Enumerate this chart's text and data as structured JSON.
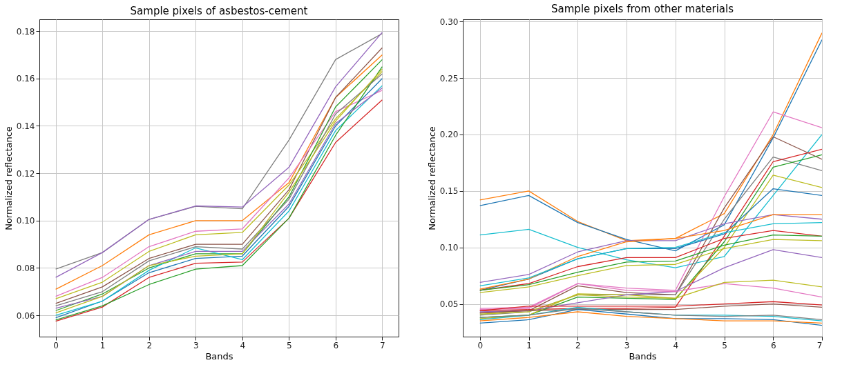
{
  "chart_data": [
    {
      "type": "line",
      "title": "Sample pixels of asbestos-cement",
      "xlabel": "Bands",
      "ylabel": "Normalized reflectance",
      "x": [
        0,
        1,
        2,
        3,
        4,
        5,
        6,
        7
      ],
      "xlim": [
        -0.35,
        7.35
      ],
      "xticks": [
        0,
        1,
        2,
        3,
        4,
        5,
        6,
        7
      ],
      "ylim": [
        0.051,
        0.185
      ],
      "yticks": [
        0.06,
        0.08,
        {
          "value": 0.1,
          "label": "0.10"
        },
        0.12,
        0.14,
        0.16,
        0.18
      ],
      "grid": true,
      "legend": false,
      "series": [
        {
          "color": "#7f7f7f",
          "values": [
            0.0795,
            0.0865,
            0.1005,
            0.106,
            0.105,
            0.134,
            0.168,
            0.179
          ]
        },
        {
          "color": "#9467bd",
          "values": [
            0.076,
            0.0865,
            0.1005,
            0.1062,
            0.1057,
            0.1225,
            0.1565,
            0.1795
          ]
        },
        {
          "color": "#ff7f0e",
          "values": [
            0.071,
            0.081,
            0.094,
            0.1,
            0.1,
            0.116,
            0.152,
            0.17
          ]
        },
        {
          "color": "#8c564b",
          "values": [
            0.065,
            0.072,
            0.084,
            0.09,
            0.09,
            0.113,
            0.152,
            0.173
          ]
        },
        {
          "color": "#e377c2",
          "values": [
            0.068,
            0.076,
            0.089,
            0.0955,
            0.0965,
            0.118,
            0.146,
            0.155
          ]
        },
        {
          "color": "#bcbd22",
          "values": [
            0.067,
            0.074,
            0.087,
            0.094,
            0.095,
            0.115,
            0.143,
            0.163
          ]
        },
        {
          "color": "#2ca02c",
          "values": [
            0.062,
            0.069,
            0.08,
            0.086,
            0.086,
            0.11,
            0.148,
            0.168
          ]
        },
        {
          "color": "#d62728",
          "values": [
            0.0575,
            0.0635,
            0.076,
            0.082,
            0.0825,
            0.101,
            0.133,
            0.151
          ]
        },
        {
          "color": "#1f77b4",
          "values": [
            0.059,
            0.066,
            0.078,
            0.084,
            0.085,
            0.106,
            0.14,
            0.16
          ]
        },
        {
          "color": "#17becf",
          "values": [
            0.06,
            0.066,
            0.079,
            0.0885,
            0.0835,
            0.104,
            0.138,
            0.157
          ]
        },
        {
          "color": "#2ca02c",
          "values": [
            0.058,
            0.064,
            0.073,
            0.0795,
            0.081,
            0.101,
            0.136,
            0.165
          ]
        },
        {
          "color": "#7f7f7f",
          "values": [
            0.064,
            0.07,
            0.083,
            0.089,
            0.088,
            0.109,
            0.145,
            0.162
          ]
        },
        {
          "color": "#9467bd",
          "values": [
            0.063,
            0.068,
            0.081,
            0.087,
            0.087,
            0.107,
            0.141,
            0.156
          ]
        },
        {
          "color": "#bcbd22",
          "values": [
            0.061,
            0.068,
            0.081,
            0.085,
            0.086,
            0.112,
            0.142,
            0.164
          ]
        }
      ]
    },
    {
      "type": "line",
      "title": "Sample pixels from other materials",
      "xlabel": "Bands",
      "ylabel": "Normalized reflectance",
      "x": [
        0,
        1,
        2,
        3,
        4,
        5,
        6,
        7
      ],
      "xlim": [
        -0.35,
        7.0
      ],
      "xticks": [
        0,
        1,
        2,
        3,
        4,
        5,
        6,
        7
      ],
      "ylim": [
        0.021,
        0.302
      ],
      "yticks": [
        0.05,
        {
          "value": 0.1,
          "label": "0.10"
        },
        0.15,
        {
          "value": 0.2,
          "label": "0.20"
        },
        0.25,
        {
          "value": 0.3,
          "label": "0.30"
        }
      ],
      "grid": true,
      "legend": false,
      "series": [
        {
          "color": "#ff7f0e",
          "values": [
            0.142,
            0.15,
            0.123,
            0.106,
            0.108,
            0.13,
            0.2,
            0.29
          ]
        },
        {
          "color": "#1f77b4",
          "values": [
            0.137,
            0.146,
            0.122,
            0.107,
            0.097,
            0.12,
            0.197,
            0.284
          ]
        },
        {
          "color": "#17becf",
          "values": [
            0.111,
            0.116,
            0.1,
            0.089,
            0.082,
            0.092,
            0.146,
            0.2
          ]
        },
        {
          "color": "#e377c2",
          "values": [
            0.046,
            0.047,
            0.068,
            0.064,
            0.062,
            0.145,
            0.22,
            0.206
          ]
        },
        {
          "color": "#8c564b",
          "values": [
            0.042,
            0.044,
            0.066,
            0.06,
            0.058,
            0.135,
            0.198,
            0.178
          ]
        },
        {
          "color": "#7f7f7f",
          "values": [
            0.04,
            0.043,
            0.058,
            0.058,
            0.058,
            0.125,
            0.18,
            0.168
          ]
        },
        {
          "color": "#d62728",
          "values": [
            0.044,
            0.045,
            0.046,
            0.046,
            0.047,
            0.11,
            0.176,
            0.187
          ]
        },
        {
          "color": "#2ca02c",
          "values": [
            0.038,
            0.04,
            0.056,
            0.055,
            0.054,
            0.105,
            0.171,
            0.182
          ]
        },
        {
          "color": "#bcbd22",
          "values": [
            0.037,
            0.04,
            0.059,
            0.058,
            0.055,
            0.1,
            0.164,
            0.153
          ]
        },
        {
          "color": "#1f77b4",
          "values": [
            0.062,
            0.072,
            0.09,
            0.099,
            0.099,
            0.112,
            0.152,
            0.146
          ]
        },
        {
          "color": "#9467bd",
          "values": [
            0.069,
            0.076,
            0.096,
            0.106,
            0.106,
            0.121,
            0.129,
            0.125
          ]
        },
        {
          "color": "#ff7f0e",
          "values": [
            0.063,
            0.072,
            0.092,
            0.105,
            0.108,
            0.115,
            0.129,
            0.129
          ]
        },
        {
          "color": "#17becf",
          "values": [
            0.066,
            0.073,
            0.09,
            0.099,
            0.1,
            0.113,
            0.121,
            0.122
          ]
        },
        {
          "color": "#d62728",
          "values": [
            0.062,
            0.068,
            0.083,
            0.091,
            0.091,
            0.108,
            0.115,
            0.11
          ]
        },
        {
          "color": "#2ca02c",
          "values": [
            0.062,
            0.067,
            0.078,
            0.087,
            0.088,
            0.102,
            0.111,
            0.11
          ]
        },
        {
          "color": "#bcbd22",
          "values": [
            0.06,
            0.065,
            0.075,
            0.084,
            0.085,
            0.099,
            0.107,
            0.106
          ]
        },
        {
          "color": "#9467bd",
          "values": [
            0.043,
            0.044,
            0.051,
            0.058,
            0.061,
            0.082,
            0.098,
            0.091
          ]
        },
        {
          "color": "#e377c2",
          "values": [
            0.045,
            0.046,
            0.068,
            0.062,
            0.061,
            0.068,
            0.064,
            0.056
          ]
        },
        {
          "color": "#bcbd22",
          "values": [
            0.041,
            0.043,
            0.058,
            0.056,
            0.055,
            0.069,
            0.071,
            0.065
          ]
        },
        {
          "color": "#d62728",
          "values": [
            0.044,
            0.048,
            0.048,
            0.048,
            0.048,
            0.05,
            0.052,
            0.049
          ]
        },
        {
          "color": "#8c564b",
          "values": [
            0.042,
            0.044,
            0.045,
            0.045,
            0.045,
            0.048,
            0.05,
            0.047
          ]
        },
        {
          "color": "#17becf",
          "values": [
            0.036,
            0.04,
            0.047,
            0.043,
            0.04,
            0.04,
            0.039,
            0.035
          ]
        },
        {
          "color": "#1f77b4",
          "values": [
            0.033,
            0.036,
            0.045,
            0.041,
            0.037,
            0.037,
            0.036,
            0.031
          ]
        },
        {
          "color": "#ff7f0e",
          "values": [
            0.035,
            0.038,
            0.043,
            0.039,
            0.037,
            0.035,
            0.035,
            0.033
          ]
        },
        {
          "color": "#7f7f7f",
          "values": [
            0.038,
            0.04,
            0.046,
            0.043,
            0.04,
            0.039,
            0.04,
            0.036
          ]
        }
      ]
    }
  ]
}
